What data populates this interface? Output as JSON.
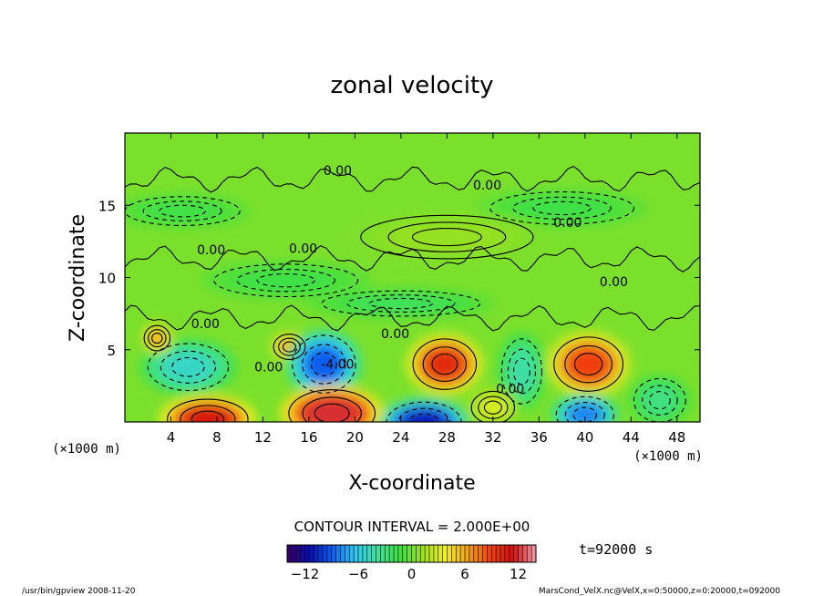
{
  "chart_data": {
    "type": "heatmap",
    "title": "zonal velocity",
    "xlabel": "X-coordinate",
    "ylabel": "Z-coordinate",
    "x_unit": "(×1000 m)",
    "y_unit": "(×1000 m)",
    "xlim": [
      0,
      50
    ],
    "ylim": [
      0,
      20
    ],
    "x_ticks": [
      4,
      8,
      12,
      16,
      20,
      24,
      28,
      32,
      36,
      40,
      44,
      48
    ],
    "y_ticks": [
      5,
      10,
      15
    ],
    "contour_interval_text": "CONTOUR INTERVAL = 2.000E+00",
    "time_text": "t=92000 s",
    "colorbar": {
      "min": -14,
      "max": 14,
      "ticks": [
        -12,
        -6,
        0,
        6,
        12
      ],
      "colors": [
        "#3a0060",
        "#0a0ab0",
        "#1060f0",
        "#30c8f0",
        "#40e0a0",
        "#40e040",
        "#a0e020",
        "#f0f020",
        "#f0a020",
        "#f04010",
        "#d01010",
        "#f0a0b0"
      ]
    },
    "contour_labels": [
      {
        "text": "0.00",
        "x": 18.5,
        "z": 17.1
      },
      {
        "text": "0.00",
        "x": 31.5,
        "z": 16.1
      },
      {
        "text": "0.00",
        "x": 38.5,
        "z": 13.5
      },
      {
        "text": "0.00",
        "x": 7.5,
        "z": 11.6
      },
      {
        "text": "0.00",
        "x": 15.5,
        "z": 11.7
      },
      {
        "text": "0.00",
        "x": 42.5,
        "z": 9.4
      },
      {
        "text": "0.00",
        "x": 7.0,
        "z": 6.5
      },
      {
        "text": "0.00",
        "x": 12.5,
        "z": 3.5
      },
      {
        "text": "-4.00",
        "x": 18.5,
        "z": 3.7
      },
      {
        "text": "0.00",
        "x": 23.5,
        "z": 5.8
      },
      {
        "text": "0.00",
        "x": 33.5,
        "z": 2.0
      }
    ],
    "features": [
      {
        "x": 5.5,
        "z": 3.8,
        "value": -5,
        "sx": 2.8,
        "sz": 1.3
      },
      {
        "x": 7.2,
        "z": 0.2,
        "value": 11,
        "sx": 2.8,
        "sz": 1.1
      },
      {
        "x": 2.8,
        "z": 5.8,
        "value": 6,
        "sx": 0.9,
        "sz": 0.7
      },
      {
        "x": 14.3,
        "z": 5.2,
        "value": 6,
        "sx": 1.1,
        "sz": 0.7
      },
      {
        "x": 17.3,
        "z": 4.0,
        "value": -9,
        "sx": 2.2,
        "sz": 1.6
      },
      {
        "x": 18.0,
        "z": 0.6,
        "value": 12,
        "sx": 3.0,
        "sz": 1.3
      },
      {
        "x": 26.0,
        "z": 0.0,
        "value": -11,
        "sx": 2.6,
        "sz": 1.1
      },
      {
        "x": 27.8,
        "z": 4.0,
        "value": 10,
        "sx": 2.2,
        "sz": 1.4
      },
      {
        "x": 34.5,
        "z": 3.5,
        "value": -4,
        "sx": 1.4,
        "sz": 1.8
      },
      {
        "x": 40.3,
        "z": 4.0,
        "value": 9,
        "sx": 2.4,
        "sz": 1.5
      },
      {
        "x": 40.0,
        "z": 0.5,
        "value": -8,
        "sx": 2.0,
        "sz": 1.0
      },
      {
        "x": 46.5,
        "z": 1.5,
        "value": -3,
        "sx": 1.8,
        "sz": 1.2
      },
      {
        "x": 32.0,
        "z": 1.0,
        "value": 3,
        "sx": 1.5,
        "sz": 0.9
      },
      {
        "x": 24.0,
        "z": 8.2,
        "value": -2,
        "sx": 5.5,
        "sz": 0.7
      },
      {
        "x": 14.0,
        "z": 9.8,
        "value": -1.5,
        "sx": 5.0,
        "sz": 0.9
      },
      {
        "x": 38.0,
        "z": 14.8,
        "value": -1.5,
        "sx": 5.0,
        "sz": 0.9
      },
      {
        "x": 5.0,
        "z": 14.6,
        "value": -1.5,
        "sx": 4.0,
        "sz": 0.8
      },
      {
        "x": 28.0,
        "z": 12.8,
        "value": 1,
        "sx": 6.0,
        "sz": 1.2
      }
    ]
  },
  "footer": {
    "left": "/usr/bin/gpview   2008-11-20",
    "right": "MarsCond_VelX.nc@VelX,x=0:50000,z=0:20000,t=092000"
  }
}
